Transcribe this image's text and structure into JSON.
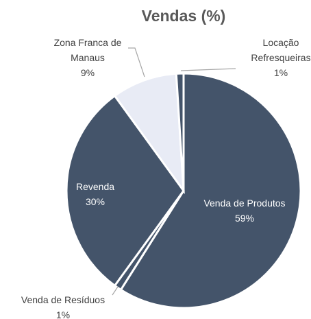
{
  "chart_data": {
    "type": "pie",
    "title": "Vendas (%)",
    "categories": [
      "Venda de Produtos",
      "Venda de Resíduos",
      "Revenda",
      "Zona Franca de Manaus",
      "Locação Refresqueiras"
    ],
    "values": [
      59,
      1,
      30,
      9,
      1
    ],
    "value_labels": [
      "59%",
      "1%",
      "30%",
      "9%",
      "1%"
    ],
    "colors": [
      "#44546a",
      "#44546a",
      "#44546a",
      "#e8ebf5",
      "#44546a"
    ]
  }
}
